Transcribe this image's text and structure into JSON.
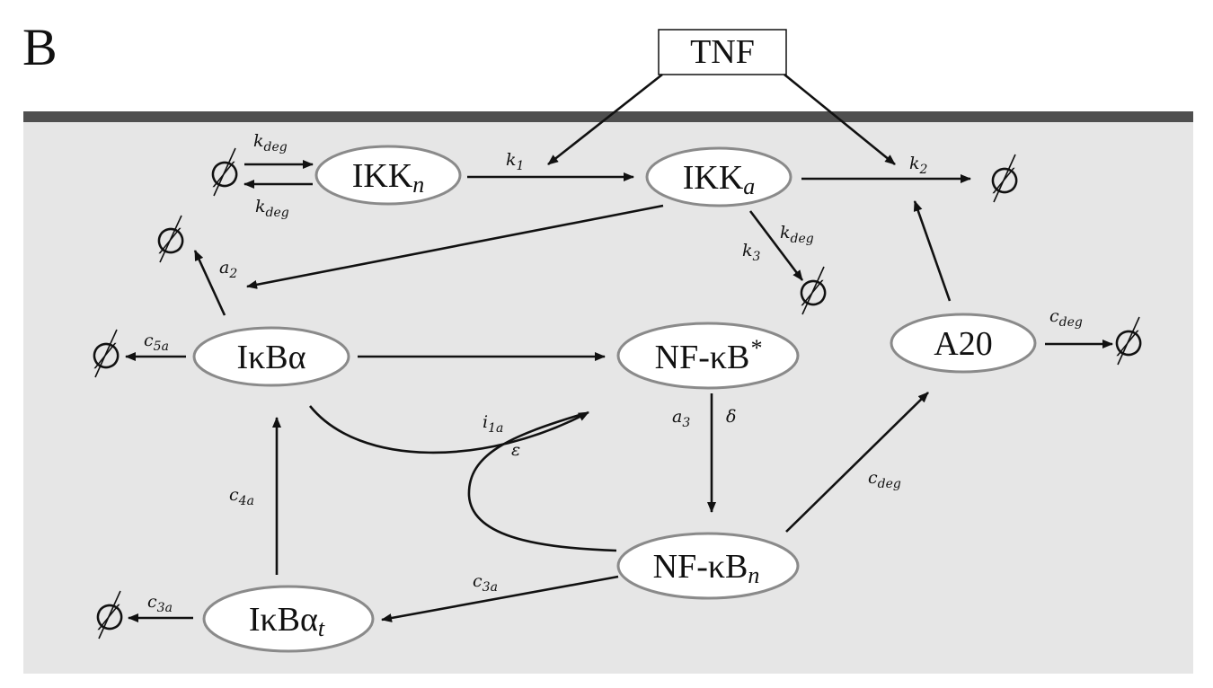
{
  "panel_label": "B",
  "tnf_label": "TNF",
  "nodes": {
    "ikkn": {
      "base": "IKK",
      "sub": "n"
    },
    "ikka": {
      "base": "IKK",
      "sub": "a"
    },
    "ikba": {
      "text": "IκBα"
    },
    "nfkb_star": {
      "base": "NF-κB",
      "sup": "*"
    },
    "a20": {
      "text": "A20"
    },
    "nfkb_n": {
      "base": "NF-κB",
      "sub": "n"
    },
    "ikba_t": {
      "base": "IκBα",
      "sub": "t"
    }
  },
  "empty_set": "∅",
  "rates": {
    "kdeg_top": {
      "base": "k",
      "sub": "deg"
    },
    "kdeg_bottom": {
      "base": "k",
      "sub": "deg"
    },
    "k1": {
      "base": "k",
      "sub": "1"
    },
    "k2": {
      "base": "k",
      "sub": "2"
    },
    "k3": {
      "base": "k",
      "sub": "3"
    },
    "kdeg_ikka": {
      "base": "k",
      "sub": "deg"
    },
    "a2": {
      "base": "a",
      "sub": "2"
    },
    "c5a": {
      "base": "c",
      "sub": "5a"
    },
    "cdeg_a20": {
      "base": "c",
      "sub": "deg"
    },
    "i1a": {
      "base": "i",
      "sub": "1a"
    },
    "epsilon": {
      "base": "ε"
    },
    "a3": {
      "base": "a",
      "sub": "3"
    },
    "delta": {
      "base": "δ"
    },
    "c4a": {
      "base": "c",
      "sub": "4a"
    },
    "cdeg_nfkbn": {
      "base": "c",
      "sub": "deg"
    },
    "c3a_nfkbn": {
      "base": "c",
      "sub": "3a"
    },
    "c3a_left": {
      "base": "c",
      "sub": "3a"
    }
  }
}
